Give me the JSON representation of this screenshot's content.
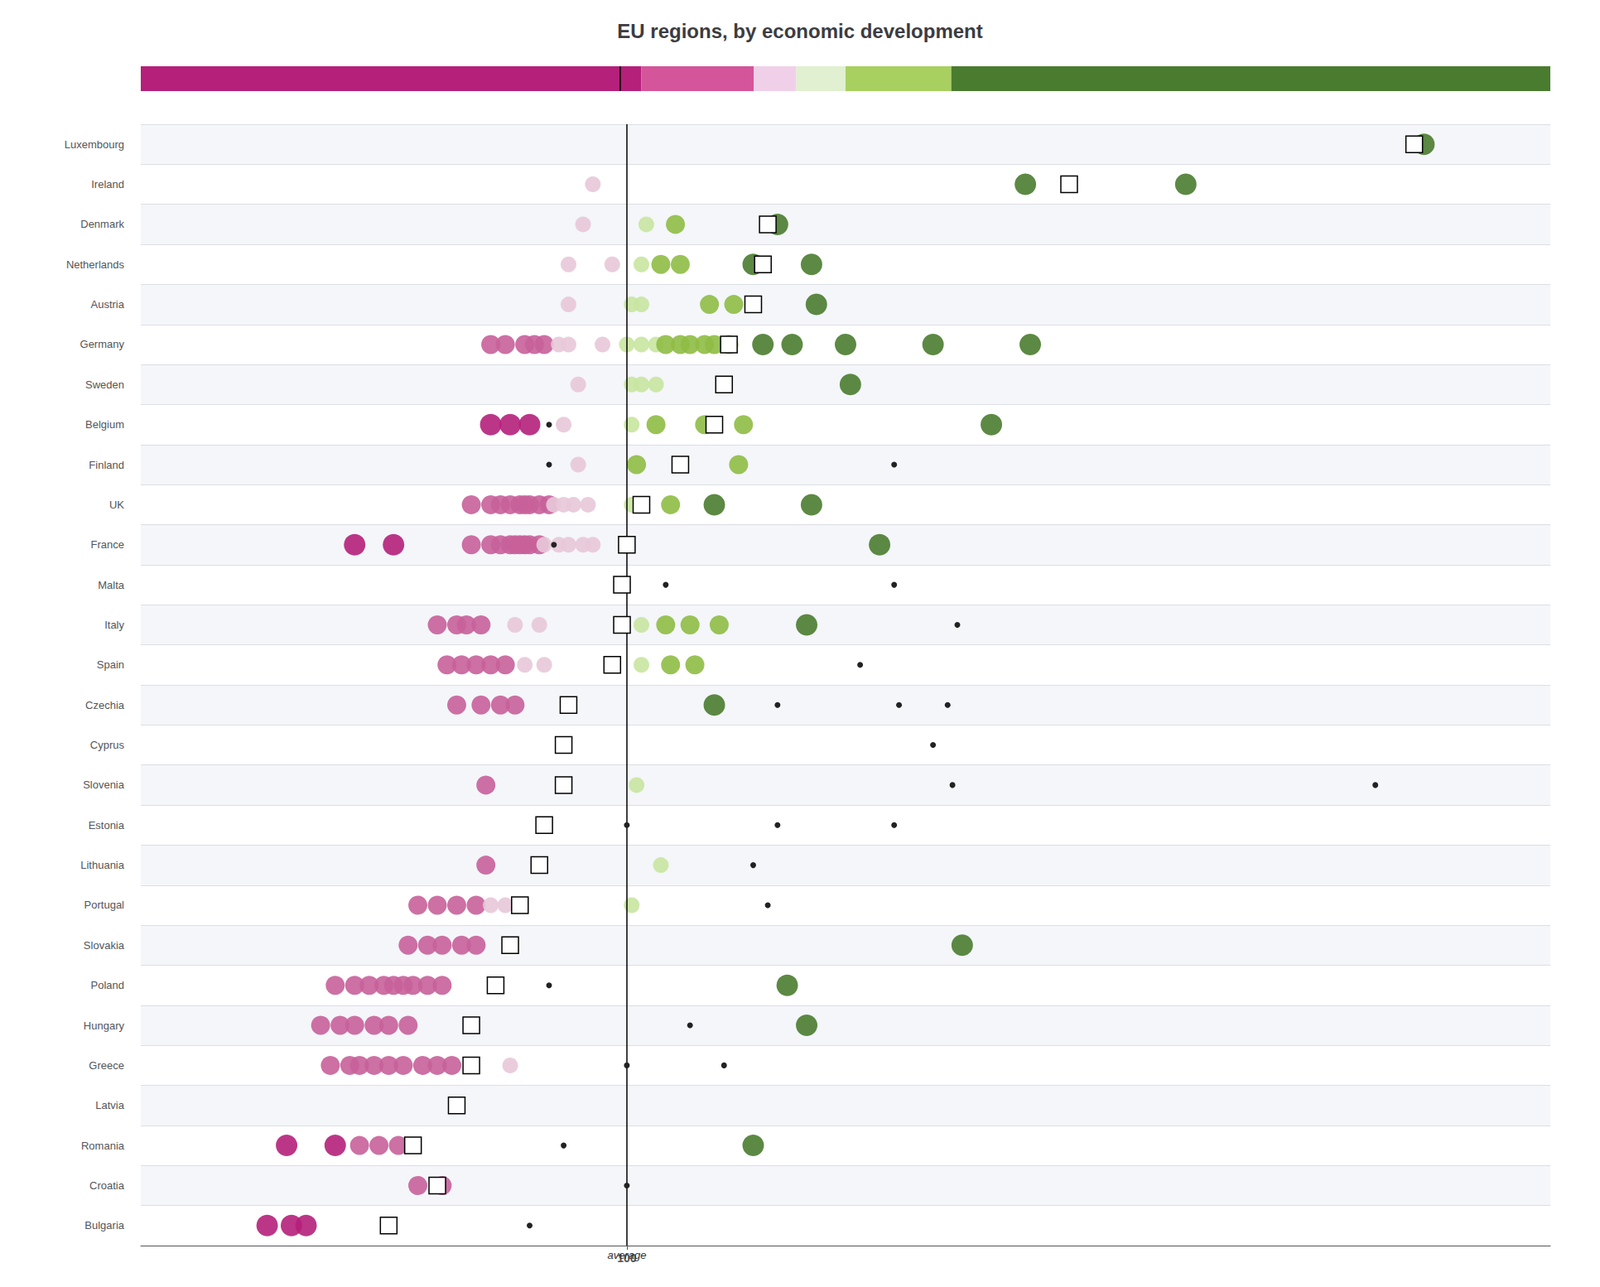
{
  "chart_data": {
    "type": "scatter",
    "title": "EU regions, by economic development",
    "categories": [
      "Luxembourg",
      "Ireland",
      "Denmark",
      "Netherlands",
      "Austria",
      "Germany",
      "Sweden",
      "Belgium",
      "Finland",
      "UK",
      "France",
      "Malta",
      "Italy",
      "Spain",
      "Czechia",
      "Cyprus",
      "Slovenia",
      "Estonia",
      "Lithuania",
      "Portugal",
      "Slovakia",
      "Poland",
      "Hungary",
      "Greece",
      "Latvia",
      "Romania",
      "Croatia",
      "Bulgaria"
    ],
    "regions": [
      [
        {
          "value": 264,
          "color": "#4a7c2f"
        }
      ],
      [
        {
          "value": 93,
          "color": "#e8c8d8"
        },
        {
          "value": 182,
          "color": "#4a7c2f"
        },
        {
          "value": 215,
          "color": "#4a7c2f"
        }
      ],
      [
        {
          "value": 104,
          "color": "#c8e6a0"
        },
        {
          "value": 110,
          "color": "#8fbc45"
        },
        {
          "value": 131,
          "color": "#4a7c2f"
        },
        {
          "value": 91,
          "color": "#e8c8d8"
        }
      ],
      [
        {
          "value": 88,
          "color": "#e8c8d8"
        },
        {
          "value": 97,
          "color": "#e8c8d8"
        },
        {
          "value": 103,
          "color": "#c8e6a0"
        },
        {
          "value": 107,
          "color": "#8fbc45"
        },
        {
          "value": 111,
          "color": "#8fbc45"
        },
        {
          "value": 126,
          "color": "#4a7c2f"
        },
        {
          "value": 138,
          "color": "#4a7c2f"
        }
      ],
      [
        {
          "value": 88,
          "color": "#e8c8d8"
        },
        {
          "value": 101,
          "color": "#c8e6a0"
        },
        {
          "value": 103,
          "color": "#c8e6a0"
        },
        {
          "value": 117,
          "color": "#8fbc45"
        },
        {
          "value": 122,
          "color": "#8fbc45"
        },
        {
          "value": 139,
          "color": "#4a7c2f"
        }
      ],
      [
        {
          "value": 72,
          "color": "#c8609a"
        },
        {
          "value": 75,
          "color": "#c8609a"
        },
        {
          "value": 79,
          "color": "#c8609a"
        },
        {
          "value": 81,
          "color": "#c8609a"
        },
        {
          "value": 83,
          "color": "#c8609a"
        },
        {
          "value": 86,
          "color": "#e8c8d8"
        },
        {
          "value": 88,
          "color": "#e8c8d8"
        },
        {
          "value": 95,
          "color": "#e8c8d8"
        },
        {
          "value": 100,
          "color": "#c8e6a0"
        },
        {
          "value": 103,
          "color": "#c8e6a0"
        },
        {
          "value": 106,
          "color": "#c8e6a0"
        },
        {
          "value": 108,
          "color": "#8fbc45"
        },
        {
          "value": 111,
          "color": "#8fbc45"
        },
        {
          "value": 113,
          "color": "#8fbc45"
        },
        {
          "value": 116,
          "color": "#8fbc45"
        },
        {
          "value": 118,
          "color": "#8fbc45"
        },
        {
          "value": 121,
          "color": "#8fbc45"
        },
        {
          "value": 128,
          "color": "#4a7c2f"
        },
        {
          "value": 134,
          "color": "#4a7c2f"
        },
        {
          "value": 145,
          "color": "#4a7c2f"
        },
        {
          "value": 163,
          "color": "#4a7c2f"
        },
        {
          "value": 183,
          "color": "#4a7c2f"
        }
      ],
      [
        {
          "value": 90,
          "color": "#e8c8d8"
        },
        {
          "value": 101,
          "color": "#c8e6a0"
        },
        {
          "value": 103,
          "color": "#c8e6a0"
        },
        {
          "value": 106,
          "color": "#c8e6a0"
        },
        {
          "value": 146,
          "color": "#4a7c2f"
        }
      ],
      [
        {
          "value": 72,
          "color": "#b5207a"
        },
        {
          "value": 76,
          "color": "#b5207a"
        },
        {
          "value": 80,
          "color": "#b5207a"
        },
        {
          "value": 87,
          "color": "#e8c8d8"
        },
        {
          "value": 101,
          "color": "#c8e6a0"
        },
        {
          "value": 106,
          "color": "#8fbc45"
        },
        {
          "value": 116,
          "color": "#8fbc45"
        },
        {
          "value": 124,
          "color": "#8fbc45"
        },
        {
          "value": 175,
          "color": "#4a7c2f"
        },
        {
          "value": 84,
          "color": "#222222"
        }
      ],
      [
        {
          "value": 84,
          "color": "#222222"
        },
        {
          "value": 90,
          "color": "#e8c8d8"
        },
        {
          "value": 102,
          "color": "#8fbc45"
        },
        {
          "value": 123,
          "color": "#8fbc45"
        },
        {
          "value": 155,
          "color": "#222222"
        }
      ],
      [
        {
          "value": 68,
          "color": "#c8609a"
        },
        {
          "value": 72,
          "color": "#c8609a"
        },
        {
          "value": 74,
          "color": "#c8609a"
        },
        {
          "value": 76,
          "color": "#c8609a"
        },
        {
          "value": 78,
          "color": "#c8609a"
        },
        {
          "value": 79,
          "color": "#c8609a"
        },
        {
          "value": 80,
          "color": "#c8609a"
        },
        {
          "value": 82,
          "color": "#c8609a"
        },
        {
          "value": 84,
          "color": "#c8609a"
        },
        {
          "value": 85,
          "color": "#e8c8d8"
        },
        {
          "value": 87,
          "color": "#e8c8d8"
        },
        {
          "value": 89,
          "color": "#e8c8d8"
        },
        {
          "value": 92,
          "color": "#e8c8d8"
        },
        {
          "value": 101,
          "color": "#c8e6a0"
        },
        {
          "value": 109,
          "color": "#8fbc45"
        },
        {
          "value": 118,
          "color": "#4a7c2f"
        },
        {
          "value": 138,
          "color": "#4a7c2f"
        }
      ],
      [
        {
          "value": 44,
          "color": "#b5207a"
        },
        {
          "value": 52,
          "color": "#b5207a"
        },
        {
          "value": 68,
          "color": "#c8609a"
        },
        {
          "value": 72,
          "color": "#c8609a"
        },
        {
          "value": 74,
          "color": "#c8609a"
        },
        {
          "value": 76,
          "color": "#c8609a"
        },
        {
          "value": 77,
          "color": "#c8609a"
        },
        {
          "value": 78,
          "color": "#c8609a"
        },
        {
          "value": 79,
          "color": "#c8609a"
        },
        {
          "value": 80,
          "color": "#c8609a"
        },
        {
          "value": 82,
          "color": "#c8609a"
        },
        {
          "value": 83,
          "color": "#e8c8d8"
        },
        {
          "value": 86,
          "color": "#e8c8d8"
        },
        {
          "value": 88,
          "color": "#e8c8d8"
        },
        {
          "value": 91,
          "color": "#e8c8d8"
        },
        {
          "value": 93,
          "color": "#e8c8d8"
        },
        {
          "value": 152,
          "color": "#4a7c2f"
        },
        {
          "value": 85,
          "color": "#222222"
        }
      ],
      [
        {
          "value": 108,
          "color": "#222222"
        },
        {
          "value": 155,
          "color": "#222222"
        }
      ],
      [
        {
          "value": 61,
          "color": "#c8609a"
        },
        {
          "value": 65,
          "color": "#c8609a"
        },
        {
          "value": 67,
          "color": "#c8609a"
        },
        {
          "value": 70,
          "color": "#c8609a"
        },
        {
          "value": 77,
          "color": "#e8c8d8"
        },
        {
          "value": 82,
          "color": "#e8c8d8"
        },
        {
          "value": 103,
          "color": "#c8e6a0"
        },
        {
          "value": 108,
          "color": "#8fbc45"
        },
        {
          "value": 113,
          "color": "#8fbc45"
        },
        {
          "value": 119,
          "color": "#8fbc45"
        },
        {
          "value": 137,
          "color": "#4a7c2f"
        },
        {
          "value": 168,
          "color": "#222222"
        }
      ],
      [
        {
          "value": 63,
          "color": "#c8609a"
        },
        {
          "value": 66,
          "color": "#c8609a"
        },
        {
          "value": 69,
          "color": "#c8609a"
        },
        {
          "value": 72,
          "color": "#c8609a"
        },
        {
          "value": 75,
          "color": "#c8609a"
        },
        {
          "value": 79,
          "color": "#e8c8d8"
        },
        {
          "value": 83,
          "color": "#e8c8d8"
        },
        {
          "value": 103,
          "color": "#c8e6a0"
        },
        {
          "value": 109,
          "color": "#8fbc45"
        },
        {
          "value": 114,
          "color": "#8fbc45"
        },
        {
          "value": 148,
          "color": "#222222"
        }
      ],
      [
        {
          "value": 65,
          "color": "#c8609a"
        },
        {
          "value": 70,
          "color": "#c8609a"
        },
        {
          "value": 74,
          "color": "#c8609a"
        },
        {
          "value": 77,
          "color": "#c8609a"
        },
        {
          "value": 118,
          "color": "#4a7c2f"
        },
        {
          "value": 131,
          "color": "#222222"
        },
        {
          "value": 156,
          "color": "#222222"
        },
        {
          "value": 166,
          "color": "#222222"
        }
      ],
      [
        {
          "value": 163,
          "color": "#222222"
        }
      ],
      [
        {
          "value": 71,
          "color": "#c8609a"
        },
        {
          "value": 102,
          "color": "#c8e6a0"
        },
        {
          "value": 167,
          "color": "#222222"
        },
        {
          "value": 254,
          "color": "#222222"
        }
      ],
      [
        {
          "value": 100,
          "color": "#222222"
        },
        {
          "value": 131,
          "color": "#222222"
        },
        {
          "value": 155,
          "color": "#222222"
        }
      ],
      [
        {
          "value": 71,
          "color": "#c8609a"
        },
        {
          "value": 107,
          "color": "#c8e6a0"
        },
        {
          "value": 126,
          "color": "#222222"
        }
      ],
      [
        {
          "value": 57,
          "color": "#c8609a"
        },
        {
          "value": 61,
          "color": "#c8609a"
        },
        {
          "value": 65,
          "color": "#c8609a"
        },
        {
          "value": 69,
          "color": "#c8609a"
        },
        {
          "value": 72,
          "color": "#e8c8d8"
        },
        {
          "value": 75,
          "color": "#e8c8d8"
        },
        {
          "value": 101,
          "color": "#c8e6a0"
        },
        {
          "value": 129,
          "color": "#222222"
        }
      ],
      [
        {
          "value": 55,
          "color": "#c8609a"
        },
        {
          "value": 59,
          "color": "#c8609a"
        },
        {
          "value": 62,
          "color": "#c8609a"
        },
        {
          "value": 66,
          "color": "#c8609a"
        },
        {
          "value": 69,
          "color": "#c8609a"
        },
        {
          "value": 169,
          "color": "#4a7c2f"
        }
      ],
      [
        {
          "value": 40,
          "color": "#c8609a"
        },
        {
          "value": 44,
          "color": "#c8609a"
        },
        {
          "value": 47,
          "color": "#c8609a"
        },
        {
          "value": 50,
          "color": "#c8609a"
        },
        {
          "value": 52,
          "color": "#c8609a"
        },
        {
          "value": 54,
          "color": "#c8609a"
        },
        {
          "value": 56,
          "color": "#c8609a"
        },
        {
          "value": 59,
          "color": "#c8609a"
        },
        {
          "value": 62,
          "color": "#c8609a"
        },
        {
          "value": 84,
          "color": "#222222"
        },
        {
          "value": 133,
          "color": "#4a7c2f"
        }
      ],
      [
        {
          "value": 37,
          "color": "#c8609a"
        },
        {
          "value": 41,
          "color": "#c8609a"
        },
        {
          "value": 44,
          "color": "#c8609a"
        },
        {
          "value": 48,
          "color": "#c8609a"
        },
        {
          "value": 51,
          "color": "#c8609a"
        },
        {
          "value": 55,
          "color": "#c8609a"
        },
        {
          "value": 113,
          "color": "#222222"
        },
        {
          "value": 137,
          "color": "#4a7c2f"
        }
      ],
      [
        {
          "value": 39,
          "color": "#c8609a"
        },
        {
          "value": 43,
          "color": "#c8609a"
        },
        {
          "value": 45,
          "color": "#c8609a"
        },
        {
          "value": 48,
          "color": "#c8609a"
        },
        {
          "value": 51,
          "color": "#c8609a"
        },
        {
          "value": 54,
          "color": "#c8609a"
        },
        {
          "value": 58,
          "color": "#c8609a"
        },
        {
          "value": 61,
          "color": "#c8609a"
        },
        {
          "value": 64,
          "color": "#c8609a"
        },
        {
          "value": 76,
          "color": "#e8c8d8"
        },
        {
          "value": 100,
          "color": "#222222"
        },
        {
          "value": 120,
          "color": "#222222"
        }
      ],
      [
        {
          "value": 65,
          "color": "#222222"
        }
      ],
      [
        {
          "value": 30,
          "color": "#b5207a"
        },
        {
          "value": 40,
          "color": "#b5207a"
        },
        {
          "value": 45,
          "color": "#c8609a"
        },
        {
          "value": 49,
          "color": "#c8609a"
        },
        {
          "value": 53,
          "color": "#c8609a"
        },
        {
          "value": 126,
          "color": "#4a7c2f"
        },
        {
          "value": 87,
          "color": "#222222"
        }
      ],
      [
        {
          "value": 57,
          "color": "#c8609a"
        },
        {
          "value": 62,
          "color": "#c8609a"
        },
        {
          "value": 100,
          "color": "#222222"
        }
      ],
      [
        {
          "value": 26,
          "color": "#b5207a"
        },
        {
          "value": 31,
          "color": "#b5207a"
        },
        {
          "value": 34,
          "color": "#b5207a"
        },
        {
          "value": 51,
          "color": "#e8c8d8"
        },
        {
          "value": 80,
          "color": "#222222"
        }
      ]
    ],
    "country_averages": [
      262,
      191,
      129,
      128,
      126,
      121,
      120,
      118,
      111,
      103,
      100,
      99,
      99,
      97,
      88,
      87,
      87,
      83,
      82,
      78,
      76,
      73,
      68,
      68,
      65,
      56,
      61,
      51
    ],
    "marker": "square",
    "reference_line": {
      "x": 100,
      "label": "average",
      "color": "#000000"
    },
    "xlim": [
      0,
      290
    ],
    "xticks": [
      100
    ],
    "grid": true,
    "colorbar_segments": [
      {
        "x0": 0.0,
        "x1": 0.355,
        "color": "#b5207a"
      },
      {
        "x0": 0.355,
        "x1": 0.435,
        "color": "#d4559a"
      },
      {
        "x0": 0.435,
        "x1": 0.465,
        "color": "#f0d0e8"
      },
      {
        "x0": 0.465,
        "x1": 0.5,
        "color": "#e0f0d0"
      },
      {
        "x0": 0.5,
        "x1": 0.575,
        "color": "#a8d060"
      },
      {
        "x0": 0.575,
        "x1": 1.0,
        "color": "#4a7c2f"
      }
    ]
  }
}
